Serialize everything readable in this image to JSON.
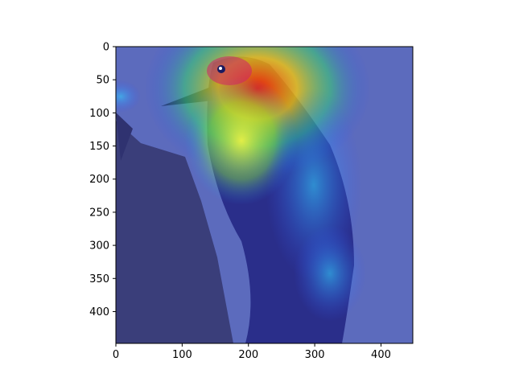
{
  "figure": {
    "kind": "image with heatmap overlay (attention / saliency map) on matplotlib axes",
    "subject": "woodpecker clinging to tree trunk",
    "overlay_colormap": "jet"
  },
  "axes": {
    "x_ticks": [
      0,
      100,
      200,
      300,
      400
    ],
    "y_ticks": [
      0,
      50,
      100,
      150,
      200,
      250,
      300,
      350,
      400
    ],
    "x_range": [
      0,
      448
    ],
    "y_range": [
      0,
      448
    ],
    "y_inverted": true
  }
}
